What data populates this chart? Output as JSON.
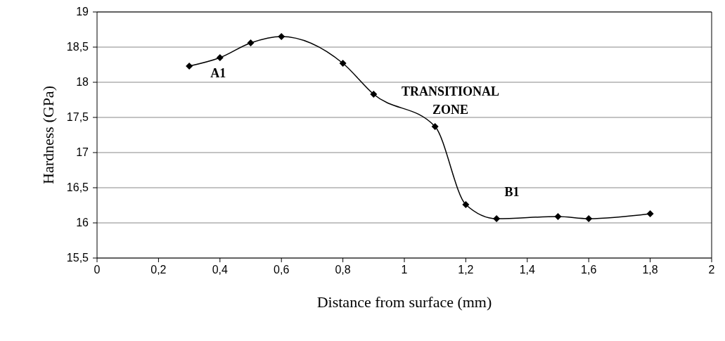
{
  "chart_data": {
    "type": "line",
    "xlabel": "Distance from surface (mm)",
    "ylabel": "Hardness (GPa)",
    "x": [
      0.3,
      0.4,
      0.5,
      0.6,
      0.8,
      0.9,
      1.1,
      1.2,
      1.3,
      1.5,
      1.6,
      1.8
    ],
    "series": [
      {
        "color": "#000000",
        "values": [
          18.23,
          18.35,
          18.56,
          18.65,
          18.27,
          17.83,
          17.37,
          16.26,
          16.06,
          16.09,
          16.06,
          16.13
        ]
      }
    ],
    "xlim": [
      0,
      2
    ],
    "ylim": [
      15.5,
      19
    ],
    "xticks": [
      0,
      {
        "value": 0.2,
        "label": "0,2"
      },
      {
        "value": 0.4,
        "label": "0,4"
      },
      {
        "value": 0.6,
        "label": "0,6"
      },
      {
        "value": 0.8,
        "label": "0,8"
      },
      1,
      {
        "value": 1.2,
        "label": "1,2"
      },
      {
        "value": 1.4,
        "label": "1,4"
      },
      {
        "value": 1.6,
        "label": "1,6"
      },
      {
        "value": 1.8,
        "label": "1,8"
      },
      2
    ],
    "yticks": [
      {
        "value": 15.5,
        "label": "15,5"
      },
      16,
      {
        "value": 16.5,
        "label": "16,5"
      },
      17,
      {
        "value": 17.5,
        "label": "17,5"
      },
      18,
      {
        "value": 18.5,
        "label": "18,5"
      },
      19
    ],
    "grid": "y",
    "marker": "diamond",
    "line_style": "solid",
    "annotations": [
      "A1",
      "TRANSITIONAL\nZONE",
      "B1"
    ]
  }
}
